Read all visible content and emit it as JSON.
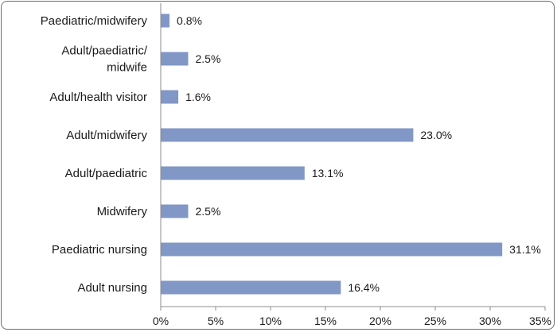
{
  "chart_data": {
    "type": "bar",
    "orientation": "horizontal",
    "title": "",
    "xlabel": "",
    "ylabel": "",
    "categories": [
      "Paediatric/midwifery",
      "Adult/paediatric/\nmidwife",
      "Adult/health visitor",
      "Adult/midwifery",
      "Adult/paediatric",
      "Midwifery",
      "Paediatric nursing",
      "Adult nursing"
    ],
    "values": [
      0.8,
      2.5,
      1.6,
      23.0,
      13.1,
      2.5,
      31.1,
      16.4
    ],
    "value_labels": [
      "0.8%",
      "2.5%",
      "1.6%",
      "23.0%",
      "13.1%",
      "2.5%",
      "31.1%",
      "16.4%"
    ],
    "xlim": [
      0,
      35
    ],
    "x_ticks": [
      0,
      5,
      10,
      15,
      20,
      25,
      30,
      35
    ],
    "x_tick_labels": [
      "0%",
      "5%",
      "10%",
      "15%",
      "20%",
      "25%",
      "30%",
      "35%"
    ],
    "grid": false,
    "legend": "none",
    "bar_color": "#8197c6"
  }
}
